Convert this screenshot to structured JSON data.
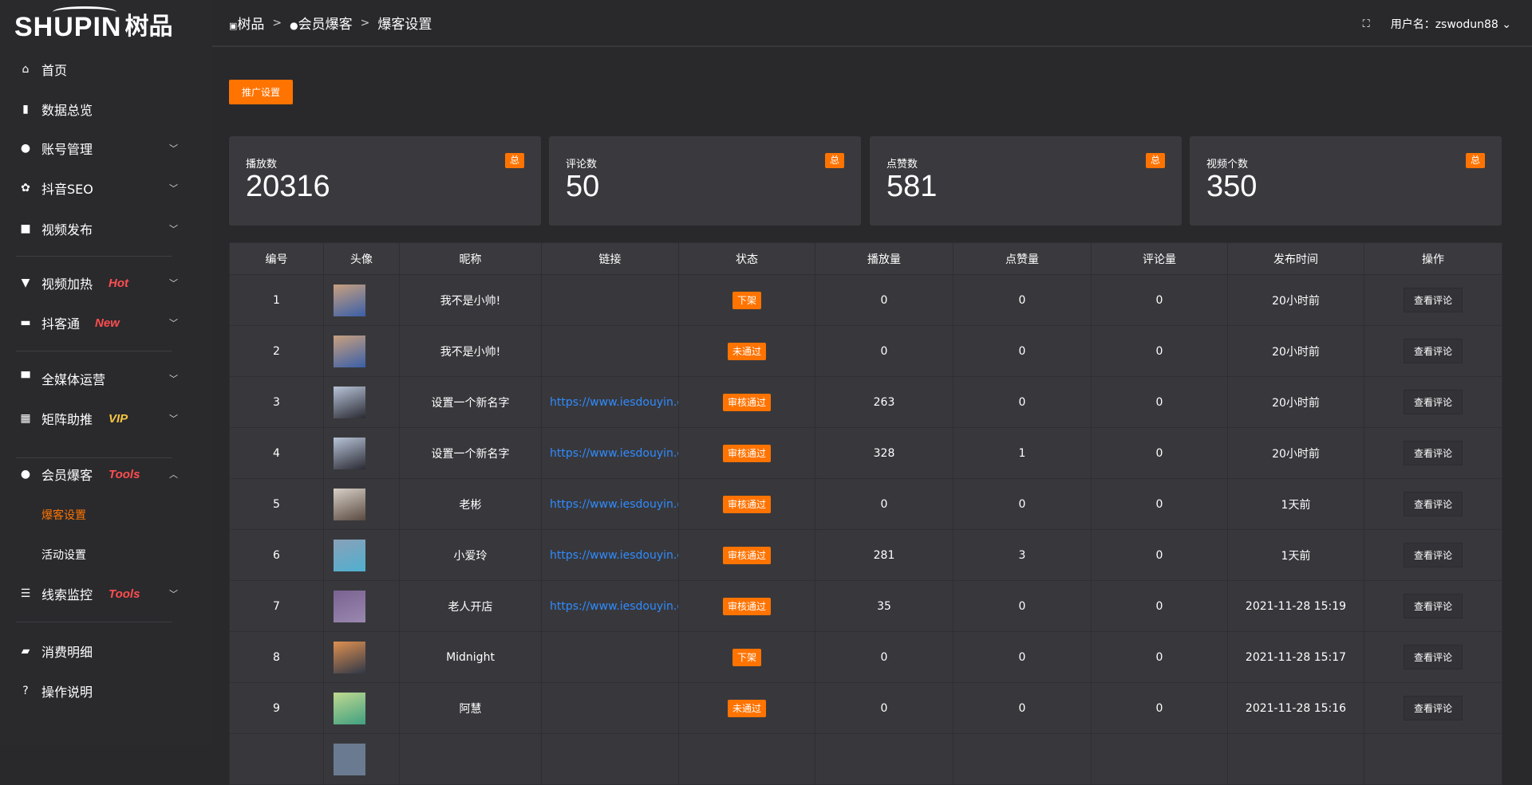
{
  "logo": {
    "text": "SHUPIN",
    "cn": "树品"
  },
  "sidebar": {
    "items": [
      {
        "icon": "home-icon",
        "glyph": "⌂",
        "label": "首页"
      },
      {
        "icon": "bar-chart-icon",
        "glyph": "▮",
        "label": "数据总览"
      },
      {
        "icon": "user-icon",
        "glyph": "●",
        "label": "账号管理",
        "chevron": true
      },
      {
        "icon": "gear-icon",
        "glyph": "✿",
        "label": "抖音SEO",
        "chevron": true
      },
      {
        "icon": "camera-icon",
        "glyph": "■",
        "label": "视频发布",
        "chevron": true
      },
      {
        "icon": "billboard-icon",
        "glyph": "▼",
        "label": "视频加热",
        "tag": "Hot",
        "tagColor": "#ff4d4f",
        "chevron": true
      },
      {
        "icon": "chat-icon",
        "glyph": "▬",
        "label": "抖客通",
        "tag": "New",
        "tagColor": "#ff4d4f",
        "chevron": true
      },
      {
        "icon": "monitor-icon",
        "glyph": "▀",
        "label": "全媒体运营",
        "chevron": true
      },
      {
        "icon": "grid-icon",
        "glyph": "▦",
        "label": "矩阵助推",
        "tag": "VIP",
        "tagColor": "#f5c542",
        "chevron": true
      },
      {
        "icon": "member-icon",
        "glyph": "●",
        "label": "会员爆客",
        "tag": "Tools",
        "tagColor": "#ff4d4f",
        "chevron": true,
        "expanded": true
      },
      {
        "icon": "sliders-icon",
        "glyph": "☰",
        "label": "线索监控",
        "tag": "Tools",
        "tagColor": "#ff4d4f",
        "chevron": true
      },
      {
        "icon": "wallet-icon",
        "glyph": "▰",
        "label": "消费明细"
      },
      {
        "icon": "help-icon",
        "glyph": "?",
        "label": "操作说明"
      }
    ],
    "subitems": [
      {
        "label": "爆客设置",
        "active": true
      },
      {
        "label": "活动设置"
      }
    ]
  },
  "breadcrumb": [
    "树品",
    "会员爆客",
    "爆客设置"
  ],
  "header": {
    "username": "用户名：zswodun88"
  },
  "promo_button": "推广设置",
  "stats": [
    {
      "title": "播放数",
      "value": "20316",
      "badge": "总"
    },
    {
      "title": "评论数",
      "value": "50",
      "badge": "总"
    },
    {
      "title": "点赞数",
      "value": "581",
      "badge": "总"
    },
    {
      "title": "视频个数",
      "value": "350",
      "badge": "总"
    }
  ],
  "table": {
    "headers": [
      "编号",
      "头像",
      "昵称",
      "链接",
      "状态",
      "播放量",
      "点赞量",
      "评论量",
      "发布时间",
      "操作"
    ],
    "rows": [
      [
        "1",
        "",
        "我不是小帅!",
        "",
        "下架",
        "0",
        "0",
        "0",
        "20小时前",
        "查看评论"
      ],
      [
        "2",
        "",
        "我不是小帅!",
        "",
        "未通过",
        "0",
        "0",
        "0",
        "20小时前",
        "查看评论"
      ],
      [
        "3",
        "",
        "设置一个新名字",
        "https://www.iesdouyin.c",
        "审核通过",
        "263",
        "0",
        "0",
        "20小时前",
        "查看评论"
      ],
      [
        "4",
        "",
        "设置一个新名字",
        "https://www.iesdouyin.c",
        "审核通过",
        "328",
        "1",
        "0",
        "20小时前",
        "查看评论"
      ],
      [
        "5",
        "",
        "老彬",
        "https://www.iesdouyin.c",
        "审核通过",
        "0",
        "0",
        "0",
        "1天前",
        "查看评论"
      ],
      [
        "6",
        "",
        "小爱玲",
        "https://www.iesdouyin.c",
        "审核通过",
        "281",
        "3",
        "0",
        "1天前",
        "查看评论"
      ],
      [
        "7",
        "",
        "老人开店",
        "https://www.iesdouyin.c",
        "审核通过",
        "35",
        "0",
        "0",
        "2021-11-28 15:19",
        "查看评论"
      ],
      [
        "8",
        "",
        "Midnight",
        "",
        "下架",
        "0",
        "0",
        "0",
        "2021-11-28 15:17",
        "查看评论"
      ],
      [
        "9",
        "",
        "阿慧",
        "",
        "未通过",
        "0",
        "0",
        "0",
        "2021-11-28 15:16",
        "查看评论"
      ]
    ]
  },
  "colors": {
    "accent": "#ff7300",
    "link": "#2f8bff"
  }
}
